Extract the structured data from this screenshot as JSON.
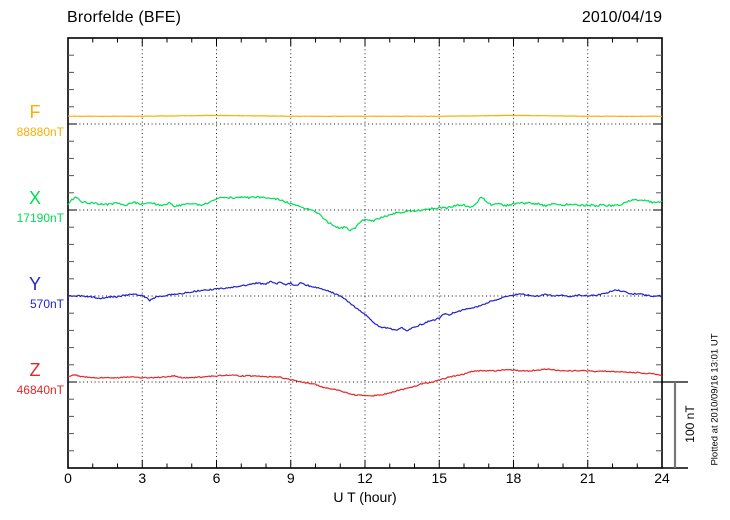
{
  "header": {
    "title": "Brorfelde (BFE)",
    "date": "2010/04/19"
  },
  "side_note": "Plotted at 2010/09/16 13:01 UT",
  "scale_bar": {
    "label": "100 nT",
    "value_nT": 100
  },
  "chart_data": {
    "type": "line",
    "title": "Brorfelde (BFE) magnetogram 2010/04/19",
    "xlabel": "U T (hour)",
    "ylabel": "",
    "x_range": [
      0,
      24
    ],
    "x_ticks": [
      0,
      3,
      6,
      9,
      12,
      15,
      18,
      21,
      24
    ],
    "x_minor_step": 1,
    "grid": "dotted vertical lines at 3-hour ticks; dotted horizontal baseline per component",
    "y_minor_tick_nT": 20,
    "legend_position": "left-margin component labels",
    "series": [
      {
        "name": "F",
        "value_label": "88880nT",
        "baseline_value": 88880,
        "unit": "nT",
        "color": "#FFAE00",
        "points": [
          [
            0,
            88889
          ],
          [
            3,
            88889
          ],
          [
            6,
            88890
          ],
          [
            9,
            88889
          ],
          [
            12,
            88889
          ],
          [
            15,
            88889
          ],
          [
            18,
            88890
          ],
          [
            21,
            88889
          ],
          [
            24,
            88889
          ]
        ]
      },
      {
        "name": "X",
        "value_label": "17190nT",
        "baseline_value": 17190,
        "unit": "nT",
        "color": "#00DD55",
        "points": [
          [
            0,
            17197
          ],
          [
            0.3,
            17206
          ],
          [
            0.6,
            17199
          ],
          [
            1,
            17198
          ],
          [
            1.5,
            17196
          ],
          [
            2,
            17198
          ],
          [
            2.3,
            17195
          ],
          [
            2.6,
            17199
          ],
          [
            3,
            17197
          ],
          [
            3.4,
            17198
          ],
          [
            3.8,
            17195
          ],
          [
            4.1,
            17199
          ],
          [
            4.3,
            17194
          ],
          [
            4.7,
            17196
          ],
          [
            5,
            17197
          ],
          [
            5.4,
            17196
          ],
          [
            5.7,
            17199
          ],
          [
            6,
            17203
          ],
          [
            6.3,
            17205
          ],
          [
            6.6,
            17204
          ],
          [
            7,
            17205
          ],
          [
            7.3,
            17204
          ],
          [
            7.6,
            17205
          ],
          [
            8,
            17204
          ],
          [
            8.3,
            17203
          ],
          [
            8.6,
            17202
          ],
          [
            9,
            17197
          ],
          [
            9.3,
            17196
          ],
          [
            9.6,
            17192
          ],
          [
            9.9,
            17189
          ],
          [
            10.2,
            17184
          ],
          [
            10.5,
            17176
          ],
          [
            10.8,
            17171
          ],
          [
            11,
            17168
          ],
          [
            11.2,
            17171
          ],
          [
            11.4,
            17166
          ],
          [
            11.6,
            17169
          ],
          [
            11.8,
            17176
          ],
          [
            12,
            17180
          ],
          [
            12.3,
            17177
          ],
          [
            12.6,
            17181
          ],
          [
            13,
            17184
          ],
          [
            13.3,
            17187
          ],
          [
            13.6,
            17188
          ],
          [
            14,
            17189
          ],
          [
            14.3,
            17190
          ],
          [
            14.6,
            17191
          ],
          [
            15,
            17193
          ],
          [
            15.3,
            17192
          ],
          [
            15.6,
            17195
          ],
          [
            16,
            17196
          ],
          [
            16.3,
            17193
          ],
          [
            16.5,
            17197
          ],
          [
            16.7,
            17206
          ],
          [
            16.9,
            17199
          ],
          [
            17.1,
            17196
          ],
          [
            17.4,
            17197
          ],
          [
            17.7,
            17195
          ],
          [
            18,
            17197
          ],
          [
            18.3,
            17198
          ],
          [
            18.6,
            17198
          ],
          [
            19,
            17197
          ],
          [
            19.3,
            17195
          ],
          [
            19.6,
            17197
          ],
          [
            20,
            17196
          ],
          [
            20.3,
            17197
          ],
          [
            20.6,
            17195
          ],
          [
            21,
            17196
          ],
          [
            21.3,
            17195
          ],
          [
            21.6,
            17196
          ],
          [
            22,
            17195
          ],
          [
            22.3,
            17196
          ],
          [
            22.6,
            17200
          ],
          [
            23,
            17202
          ],
          [
            23.3,
            17201
          ],
          [
            23.6,
            17199
          ],
          [
            24,
            17200
          ]
        ]
      },
      {
        "name": "Y",
        "value_label": "570nT",
        "baseline_value": 570,
        "unit": "nT",
        "color": "#2222CC",
        "points": [
          [
            0,
            570
          ],
          [
            0.5,
            570
          ],
          [
            1,
            569
          ],
          [
            1.3,
            567
          ],
          [
            1.6,
            569
          ],
          [
            2,
            569
          ],
          [
            2.3,
            571
          ],
          [
            2.6,
            572
          ],
          [
            3,
            571
          ],
          [
            3.3,
            565
          ],
          [
            3.6,
            569
          ],
          [
            4,
            571
          ],
          [
            4.3,
            572
          ],
          [
            4.6,
            573
          ],
          [
            5,
            575
          ],
          [
            5.3,
            576
          ],
          [
            5.6,
            577
          ],
          [
            6,
            578
          ],
          [
            6.3,
            579
          ],
          [
            6.6,
            580
          ],
          [
            7,
            582
          ],
          [
            7.3,
            583
          ],
          [
            7.6,
            585
          ],
          [
            8,
            584
          ],
          [
            8.2,
            587
          ],
          [
            8.4,
            584
          ],
          [
            8.6,
            586
          ],
          [
            8.8,
            583
          ],
          [
            9,
            585
          ],
          [
            9.2,
            582
          ],
          [
            9.4,
            585
          ],
          [
            9.6,
            583
          ],
          [
            10,
            580
          ],
          [
            10.3,
            578
          ],
          [
            10.6,
            575
          ],
          [
            11,
            570
          ],
          [
            11.3,
            564
          ],
          [
            11.6,
            557
          ],
          [
            12,
            549
          ],
          [
            12.3,
            540
          ],
          [
            12.6,
            534
          ],
          [
            13,
            532
          ],
          [
            13.3,
            530
          ],
          [
            13.5,
            533
          ],
          [
            13.7,
            530
          ],
          [
            14,
            534
          ],
          [
            14.3,
            537
          ],
          [
            14.6,
            541
          ],
          [
            15,
            544
          ],
          [
            15.2,
            549
          ],
          [
            15.4,
            548
          ],
          [
            15.6,
            551
          ],
          [
            16,
            554
          ],
          [
            16.3,
            556
          ],
          [
            16.6,
            558
          ],
          [
            17,
            563
          ],
          [
            17.3,
            565
          ],
          [
            17.6,
            569
          ],
          [
            18,
            571
          ],
          [
            18.3,
            573
          ],
          [
            18.6,
            571
          ],
          [
            19,
            570
          ],
          [
            19.3,
            572
          ],
          [
            19.6,
            570
          ],
          [
            20,
            571
          ],
          [
            20.3,
            569
          ],
          [
            20.6,
            571
          ],
          [
            21,
            570
          ],
          [
            21.3,
            571
          ],
          [
            21.6,
            572
          ],
          [
            22,
            576
          ],
          [
            22.2,
            577
          ],
          [
            22.5,
            575
          ],
          [
            22.8,
            572
          ],
          [
            23,
            573
          ],
          [
            23.3,
            571
          ],
          [
            23.6,
            570
          ],
          [
            24,
            570
          ]
        ]
      },
      {
        "name": "Z",
        "value_label": "46840nT",
        "baseline_value": 46840,
        "unit": "nT",
        "color": "#E62626",
        "points": [
          [
            0,
            46847
          ],
          [
            0.3,
            46848
          ],
          [
            0.6,
            46846
          ],
          [
            1,
            46845
          ],
          [
            1.5,
            46845
          ],
          [
            2,
            46845
          ],
          [
            2.5,
            46846
          ],
          [
            3,
            46845
          ],
          [
            3.5,
            46845
          ],
          [
            4,
            46846
          ],
          [
            4.3,
            46847
          ],
          [
            4.6,
            46845
          ],
          [
            5,
            46845
          ],
          [
            5.5,
            46846
          ],
          [
            6,
            46847
          ],
          [
            6.3,
            46848
          ],
          [
            6.6,
            46848
          ],
          [
            7,
            46847
          ],
          [
            7.5,
            46847
          ],
          [
            8,
            46846
          ],
          [
            8.5,
            46846
          ],
          [
            9,
            46843
          ],
          [
            9.3,
            46841
          ],
          [
            9.6,
            46839
          ],
          [
            10,
            46837
          ],
          [
            10.3,
            46834
          ],
          [
            10.6,
            46832
          ],
          [
            11,
            46830
          ],
          [
            11.3,
            46827
          ],
          [
            11.6,
            46825
          ],
          [
            12,
            46824
          ],
          [
            12.3,
            46824
          ],
          [
            12.6,
            46825
          ],
          [
            13,
            46827
          ],
          [
            13.3,
            46830
          ],
          [
            13.6,
            46832
          ],
          [
            14,
            46835
          ],
          [
            14.3,
            46838
          ],
          [
            14.6,
            46839
          ],
          [
            15,
            46842
          ],
          [
            15.3,
            46845
          ],
          [
            15.6,
            46847
          ],
          [
            16,
            46849
          ],
          [
            16.3,
            46852
          ],
          [
            16.6,
            46853
          ],
          [
            17,
            46853
          ],
          [
            17.3,
            46853
          ],
          [
            17.6,
            46854
          ],
          [
            18,
            46854
          ],
          [
            18.3,
            46853
          ],
          [
            18.6,
            46853
          ],
          [
            19,
            46854
          ],
          [
            19.3,
            46855
          ],
          [
            19.6,
            46854
          ],
          [
            20,
            46853
          ],
          [
            20.3,
            46853
          ],
          [
            20.6,
            46853
          ],
          [
            21,
            46853
          ],
          [
            21.3,
            46852
          ],
          [
            21.6,
            46853
          ],
          [
            22,
            46852
          ],
          [
            22.3,
            46852
          ],
          [
            22.6,
            46851
          ],
          [
            23,
            46851
          ],
          [
            23.3,
            46850
          ],
          [
            23.6,
            46850
          ],
          [
            24,
            46847
          ]
        ]
      }
    ]
  }
}
